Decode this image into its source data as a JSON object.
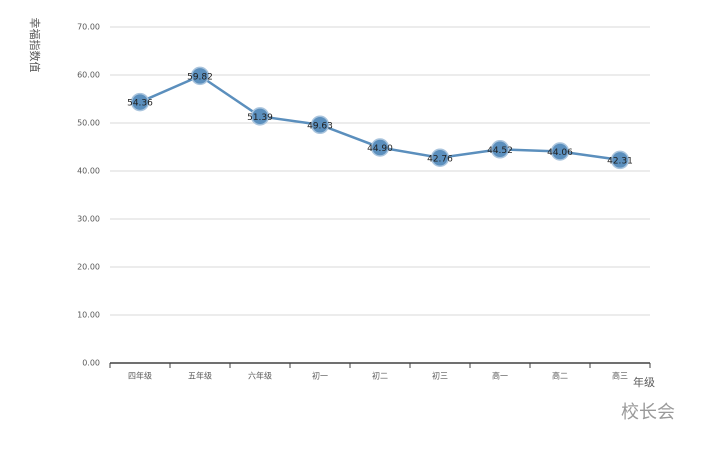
{
  "chart_data": {
    "type": "line",
    "y_label": "幸福指数值",
    "x_label": "年级",
    "watermark": "校长会",
    "categories": [
      "四年级",
      "五年级",
      "六年级",
      "初一",
      "初二",
      "初三",
      "高一",
      "高二",
      "高三"
    ],
    "values": [
      54.36,
      59.82,
      51.39,
      49.63,
      44.9,
      42.76,
      44.52,
      44.06,
      42.31
    ],
    "value_labels": [
      "54.36",
      "59.82",
      "51.39",
      "49.63",
      "44.90",
      "42.76",
      "44.52",
      "44.06",
      "42.31"
    ],
    "color": "#5b8fbd",
    "ylim": [
      0,
      70
    ],
    "yticks": [
      {
        "value": 0,
        "label": "0.00"
      },
      {
        "value": 10,
        "label": "10.00"
      },
      {
        "value": 20,
        "label": "20.00"
      },
      {
        "value": 30,
        "label": "30.00"
      },
      {
        "value": 40,
        "label": "40.00"
      },
      {
        "value": 50,
        "label": "50.00"
      },
      {
        "value": 60,
        "label": "60.00"
      },
      {
        "value": 70,
        "label": "70.00"
      }
    ],
    "grid": true
  }
}
